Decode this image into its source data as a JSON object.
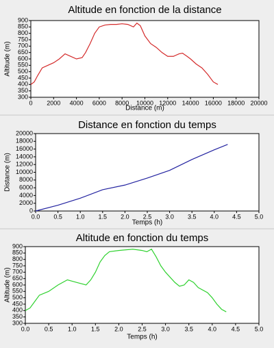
{
  "chart_data": [
    {
      "type": "line",
      "title": "Altitude en fonction de la distance",
      "x_label": "Distance (m)",
      "y_label": "Altitude (m)",
      "color": "#d42a2a",
      "x": [
        0,
        300,
        600,
        1000,
        1500,
        2000,
        2500,
        3000,
        3500,
        4000,
        4500,
        4800,
        5200,
        5600,
        6000,
        6500,
        7000,
        7500,
        8000,
        8500,
        9000,
        9300,
        9600,
        10000,
        10500,
        11000,
        11500,
        12000,
        12500,
        13000,
        13300,
        13700,
        14000,
        14500,
        15000,
        15500,
        16000,
        16400
      ],
      "values": [
        400,
        420,
        470,
        530,
        550,
        570,
        600,
        640,
        620,
        600,
        610,
        650,
        720,
        800,
        850,
        865,
        870,
        870,
        875,
        870,
        850,
        880,
        860,
        780,
        720,
        690,
        650,
        620,
        620,
        640,
        645,
        620,
        600,
        560,
        530,
        480,
        420,
        400
      ],
      "xlim": [
        0,
        20000
      ],
      "ylim": [
        300,
        900
      ],
      "xticks": [
        0,
        2000,
        4000,
        6000,
        8000,
        10000,
        12000,
        14000,
        16000,
        18000,
        20000
      ],
      "yticks": [
        300,
        350,
        400,
        450,
        500,
        550,
        600,
        650,
        700,
        750,
        800,
        850,
        900
      ]
    },
    {
      "type": "line",
      "title": "Distance en fonction du temps",
      "x_label": "Temps (h)",
      "y_label": "Distance (m)",
      "color": "#2222a0",
      "x": [
        0,
        0.5,
        1.0,
        1.5,
        2.0,
        2.5,
        3.0,
        3.5,
        4.0,
        4.3
      ],
      "values": [
        0,
        1500,
        3300,
        5500,
        6700,
        8500,
        10500,
        13300,
        15800,
        17200
      ],
      "xlim": [
        0,
        5
      ],
      "ylim": [
        0,
        20000
      ],
      "xticks": [
        {
          "value": 0,
          "label": "0.0"
        },
        0.5,
        {
          "value": 1,
          "label": "1.0"
        },
        1.5,
        {
          "value": 2,
          "label": "2.0"
        },
        2.5,
        {
          "value": 3,
          "label": "3.0"
        },
        3.5,
        {
          "value": 4,
          "label": "4.0"
        },
        4.5,
        {
          "value": 5,
          "label": "5.0"
        }
      ],
      "yticks": [
        0,
        2000,
        4000,
        6000,
        8000,
        10000,
        12000,
        14000,
        16000,
        18000,
        20000
      ]
    },
    {
      "type": "line",
      "title": "Altitude en fonction du temps",
      "x_label": "Temps (h)",
      "y_label": "Altitude (m)",
      "color": "#2ed12e",
      "x": [
        0,
        0.1,
        0.2,
        0.3,
        0.5,
        0.7,
        0.9,
        1.0,
        1.1,
        1.3,
        1.4,
        1.5,
        1.6,
        1.7,
        1.8,
        2.0,
        2.3,
        2.5,
        2.6,
        2.7,
        2.8,
        2.9,
        3.0,
        3.1,
        3.2,
        3.3,
        3.4,
        3.5,
        3.6,
        3.7,
        3.9,
        4.0,
        4.1,
        4.2,
        4.3
      ],
      "values": [
        400,
        420,
        470,
        520,
        550,
        600,
        640,
        630,
        620,
        600,
        640,
        700,
        780,
        830,
        860,
        870,
        880,
        870,
        860,
        880,
        820,
        750,
        700,
        660,
        620,
        590,
        600,
        640,
        620,
        580,
        540,
        500,
        450,
        410,
        390
      ],
      "xlim": [
        0,
        5
      ],
      "ylim": [
        300,
        900
      ],
      "xticks": [
        {
          "value": 0,
          "label": "0.0"
        },
        0.5,
        {
          "value": 1,
          "label": "1.0"
        },
        1.5,
        {
          "value": 2,
          "label": "2.0"
        },
        2.5,
        {
          "value": 3,
          "label": "3.0"
        },
        3.5,
        {
          "value": 4,
          "label": "4.0"
        },
        4.5,
        {
          "value": 5,
          "label": "5.0"
        }
      ],
      "yticks": [
        300,
        350,
        400,
        450,
        500,
        550,
        600,
        650,
        700,
        750,
        800,
        850,
        900
      ]
    }
  ]
}
